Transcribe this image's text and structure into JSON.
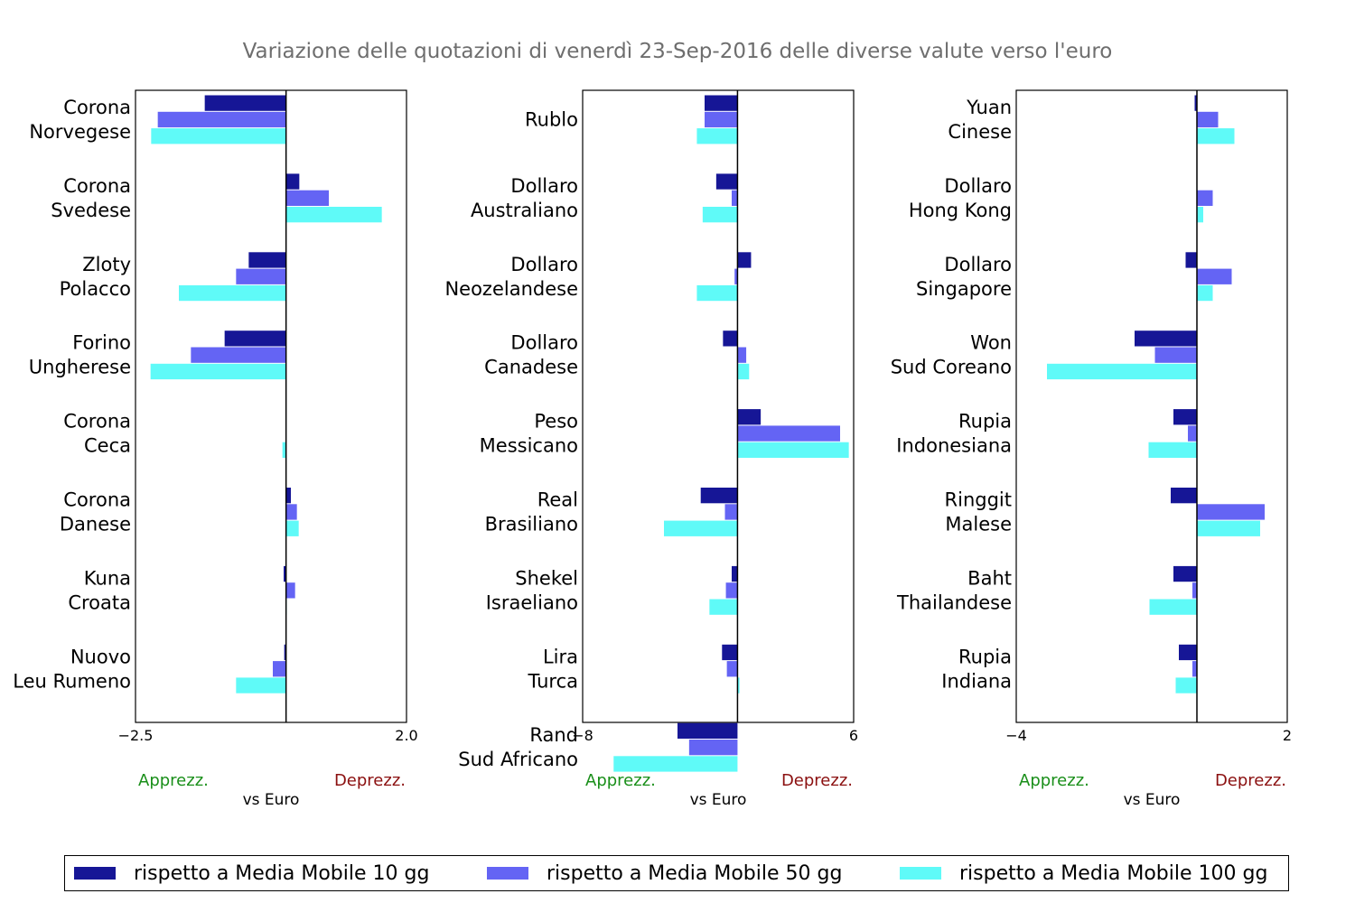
{
  "title": "Variazione delle quotazioni di venerdì 23-Sep-2016 delle diverse valute verso l'euro",
  "colors": {
    "ma10": "#161696",
    "ma50": "#6464f4",
    "ma100": "#5ffaf8",
    "apprezz": "#1a8f1a",
    "deprezz": "#8b1010"
  },
  "legend": {
    "ma10": "rispetto a Media Mobile 10 gg",
    "ma50": "rispetto a Media Mobile 50 gg",
    "ma100": "rispetto a Media Mobile 100 gg"
  },
  "chart_data": [
    {
      "type": "bar",
      "orientation": "horizontal",
      "xlim": [
        -2.5,
        2.0
      ],
      "xticks": [
        "−2.5",
        "2.0"
      ],
      "xlabel": "vs Euro",
      "left_note": "Apprezz.",
      "right_note": "Deprezz.",
      "categories": [
        [
          "Corona",
          "Norvegese"
        ],
        [
          "Corona",
          "Svedese"
        ],
        [
          "Zloty",
          "Polacco"
        ],
        [
          "Forino",
          "Ungherese"
        ],
        [
          "Corona",
          "Ceca"
        ],
        [
          "Corona",
          "Danese"
        ],
        [
          "Kuna",
          "Croata"
        ],
        [
          "Nuovo",
          "Leu Rumeno"
        ]
      ],
      "series": [
        {
          "name": "rispetto a Media Mobile 10 gg",
          "values": [
            -1.35,
            0.22,
            -0.62,
            -1.02,
            0.0,
            0.08,
            -0.04,
            -0.03
          ]
        },
        {
          "name": "rispetto a Media Mobile 50 gg",
          "values": [
            -2.13,
            0.71,
            -0.83,
            -1.58,
            -0.01,
            0.18,
            0.15,
            -0.22
          ]
        },
        {
          "name": "rispetto a Media Mobile 100 gg",
          "values": [
            -2.24,
            1.59,
            -1.78,
            -2.25,
            -0.06,
            0.21,
            0.01,
            -0.83
          ]
        }
      ]
    },
    {
      "type": "bar",
      "orientation": "horizontal",
      "xlim": [
        -8,
        6
      ],
      "xticks": [
        "−8",
        "6"
      ],
      "xlabel": "vs Euro",
      "left_note": "Apprezz.",
      "right_note": "Deprezz.",
      "categories": [
        [
          "Rublo"
        ],
        [
          "Dollaro",
          "Australiano"
        ],
        [
          "Dollaro",
          "Neozelandese"
        ],
        [
          "Dollaro",
          "Canadese"
        ],
        [
          "Peso",
          "Messicano"
        ],
        [
          "Real",
          "Brasiliano"
        ],
        [
          "Shekel",
          "Israeliano"
        ],
        [
          "Lira",
          "Turca"
        ],
        [
          "Rand",
          "Sud Africano"
        ]
      ],
      "series": [
        {
          "name": "rispetto a Media Mobile 10 gg",
          "values": [
            -1.7,
            -1.1,
            0.7,
            -0.75,
            1.2,
            -1.9,
            -0.3,
            -0.8,
            -3.1
          ]
        },
        {
          "name": "rispetto a Media Mobile 50 gg",
          "values": [
            -1.7,
            -0.3,
            -0.15,
            0.45,
            5.3,
            -0.65,
            -0.6,
            -0.55,
            -2.5
          ]
        },
        {
          "name": "rispetto a Media Mobile 100 gg",
          "values": [
            -2.1,
            -1.8,
            -2.1,
            0.6,
            5.75,
            -3.8,
            -1.45,
            0.1,
            -6.4
          ]
        }
      ]
    },
    {
      "type": "bar",
      "orientation": "horizontal",
      "xlim": [
        -4,
        2
      ],
      "xticks": [
        "−4",
        "2"
      ],
      "xlabel": "vs Euro",
      "left_note": "Apprezz.",
      "right_note": "Deprezz.",
      "categories": [
        [
          "Yuan",
          "Cinese"
        ],
        [
          "Dollaro",
          "Hong Kong"
        ],
        [
          "Dollaro",
          "Singapore"
        ],
        [
          "Won",
          "Sud Coreano"
        ],
        [
          "Rupia",
          "Indonesiana"
        ],
        [
          "Ringgit",
          "Malese"
        ],
        [
          "Baht",
          "Thailandese"
        ],
        [
          "Rupia",
          "Indiana"
        ]
      ],
      "series": [
        {
          "name": "rispetto a Media Mobile 10 gg",
          "values": [
            -0.05,
            0.0,
            -0.25,
            -1.38,
            -0.52,
            -0.58,
            -0.52,
            -0.4
          ]
        },
        {
          "name": "rispetto a Media Mobile 50 gg",
          "values": [
            0.47,
            0.35,
            0.77,
            -0.93,
            -0.2,
            1.5,
            -0.1,
            -0.1
          ]
        },
        {
          "name": "rispetto a Media Mobile 100 gg",
          "values": [
            0.83,
            0.14,
            0.35,
            -3.32,
            -1.07,
            1.4,
            -1.05,
            -0.47
          ]
        }
      ]
    }
  ]
}
